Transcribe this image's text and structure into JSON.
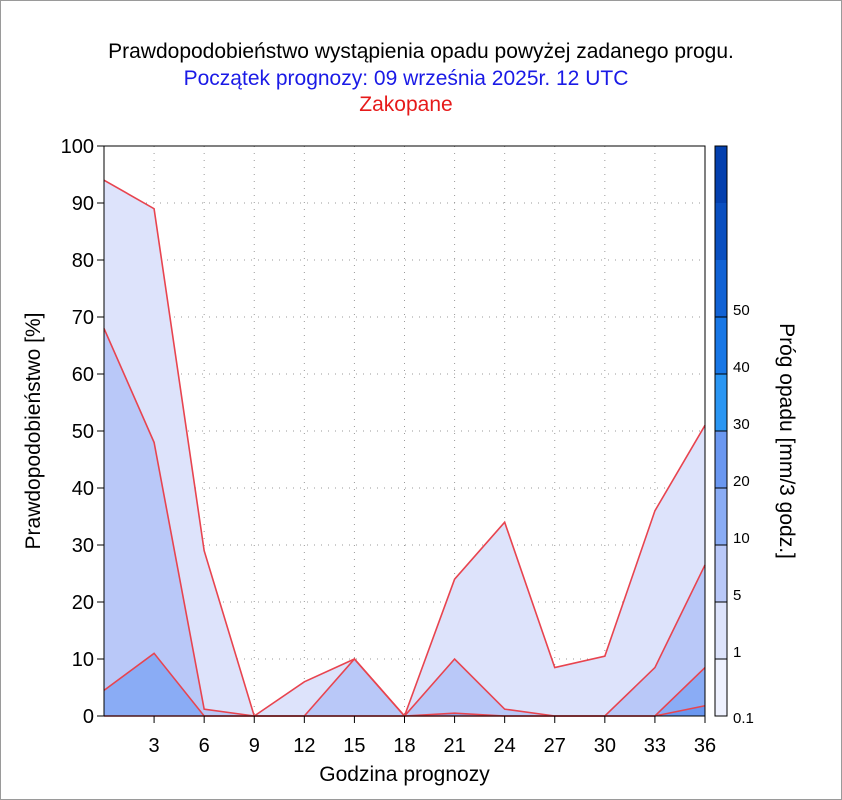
{
  "title": "Prawdopodobieństwo wystąpienia opadu powyżej zadanego progu.",
  "subtitle": "Początek prognozy: 09 września 2025r. 12 UTC",
  "location": "Zakopane",
  "colors": {
    "title": "#000000",
    "subtitle": "#1a1ae6",
    "location": "#e61a1a",
    "line": "#e8444f"
  },
  "chart_data": {
    "type": "area",
    "xlabel": "Godzina prognozy",
    "ylabel": "Prawdopodobieństwo [%]",
    "xlim": [
      0,
      36
    ],
    "ylim": [
      0,
      100
    ],
    "x": [
      0,
      3,
      6,
      9,
      12,
      15,
      18,
      21,
      24,
      27,
      30,
      33,
      36
    ],
    "x_tick_labels": [
      "3",
      "6",
      "9",
      "12",
      "15",
      "18",
      "21",
      "24",
      "27",
      "30",
      "33",
      "36"
    ],
    "y_tick_labels": [
      "0",
      "10",
      "20",
      "30",
      "40",
      "50",
      "60",
      "70",
      "80",
      "90",
      "100"
    ],
    "grid": true,
    "series": [
      {
        "threshold": 0.1,
        "color": "#dde3fb",
        "values": [
          94,
          89,
          29,
          0,
          6,
          10,
          0,
          24,
          34,
          8.5,
          10.5,
          36,
          51
        ]
      },
      {
        "threshold": 1,
        "color": "#b9c8f8",
        "values": [
          68,
          48,
          1.2,
          0,
          0,
          10,
          0,
          10,
          1.2,
          0,
          0,
          8.5,
          26.5
        ]
      },
      {
        "threshold": 5,
        "color": "#8aacf5",
        "values": [
          4.5,
          11,
          0,
          0,
          0,
          0,
          0,
          0.5,
          0,
          0,
          0,
          0,
          8.5
        ]
      },
      {
        "threshold": 10,
        "color": "#6a97f0",
        "values": [
          0,
          0,
          0,
          0,
          0,
          0,
          0,
          0,
          0,
          0,
          0,
          0,
          1.8
        ]
      }
    ],
    "colorbar": {
      "label": "Próg opadu [mm/3 godz.]",
      "tick_labels": [
        "0.1",
        "1",
        "5",
        "10",
        "20",
        "30",
        "40",
        "50"
      ],
      "colors": [
        "#eef1fe",
        "#dde3fb",
        "#b9c8f8",
        "#8aacf5",
        "#6a97f0",
        "#2a96f3",
        "#1877e6",
        "#1162d4",
        "#0a4fc0",
        "#0440ae"
      ]
    }
  }
}
